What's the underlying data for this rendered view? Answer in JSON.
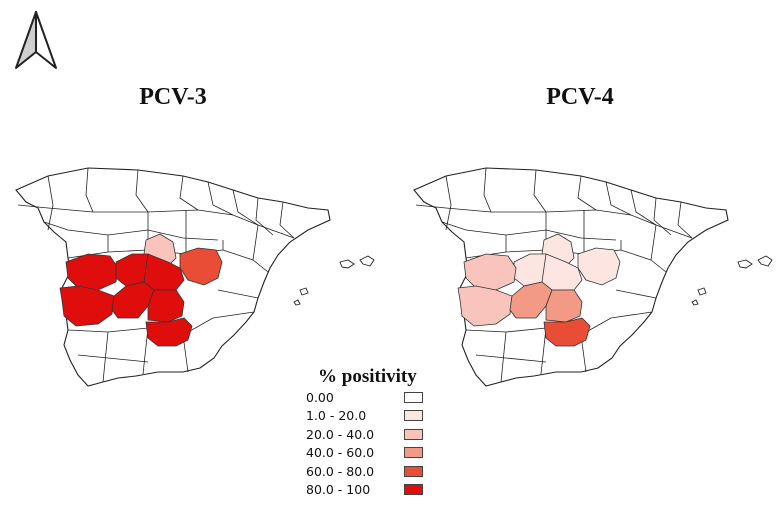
{
  "maps": [
    {
      "title": "PCV-3",
      "highlighted": [
        {
          "region": "north-center",
          "class": 2
        },
        {
          "region": "east-center",
          "class": 4
        },
        {
          "region": "west-a",
          "class": 5
        },
        {
          "region": "west-b",
          "class": 5
        },
        {
          "region": "center-a",
          "class": 5
        },
        {
          "region": "center-b",
          "class": 5
        },
        {
          "region": "center-c",
          "class": 5
        },
        {
          "region": "center-d",
          "class": 5
        },
        {
          "region": "south-center",
          "class": 5
        }
      ]
    },
    {
      "title": "PCV-4",
      "highlighted": [
        {
          "region": "north-center",
          "class": 1
        },
        {
          "region": "east-center",
          "class": 1
        },
        {
          "region": "center-a",
          "class": 1
        },
        {
          "region": "center-b",
          "class": 1
        },
        {
          "region": "west-a",
          "class": 2
        },
        {
          "region": "west-b",
          "class": 2
        },
        {
          "region": "center-c",
          "class": 3
        },
        {
          "region": "center-d",
          "class": 3
        },
        {
          "region": "south-center",
          "class": 4
        }
      ]
    }
  ],
  "legend": {
    "title": "% positivity",
    "classes": [
      {
        "label": "0.00",
        "color": "#ffffff"
      },
      {
        "label": "1.0 - 20.0",
        "color": "#fde5e2"
      },
      {
        "label": "20.0 - 40.0",
        "color": "#f9c4bb"
      },
      {
        "label": "40.0 - 60.0",
        "color": "#f29a86"
      },
      {
        "label": "60.0 - 80.0",
        "color": "#ea4d36"
      },
      {
        "label": "80.0 - 100",
        "color": "#e00d0d"
      }
    ]
  },
  "north_arrow": "north-arrow-icon"
}
